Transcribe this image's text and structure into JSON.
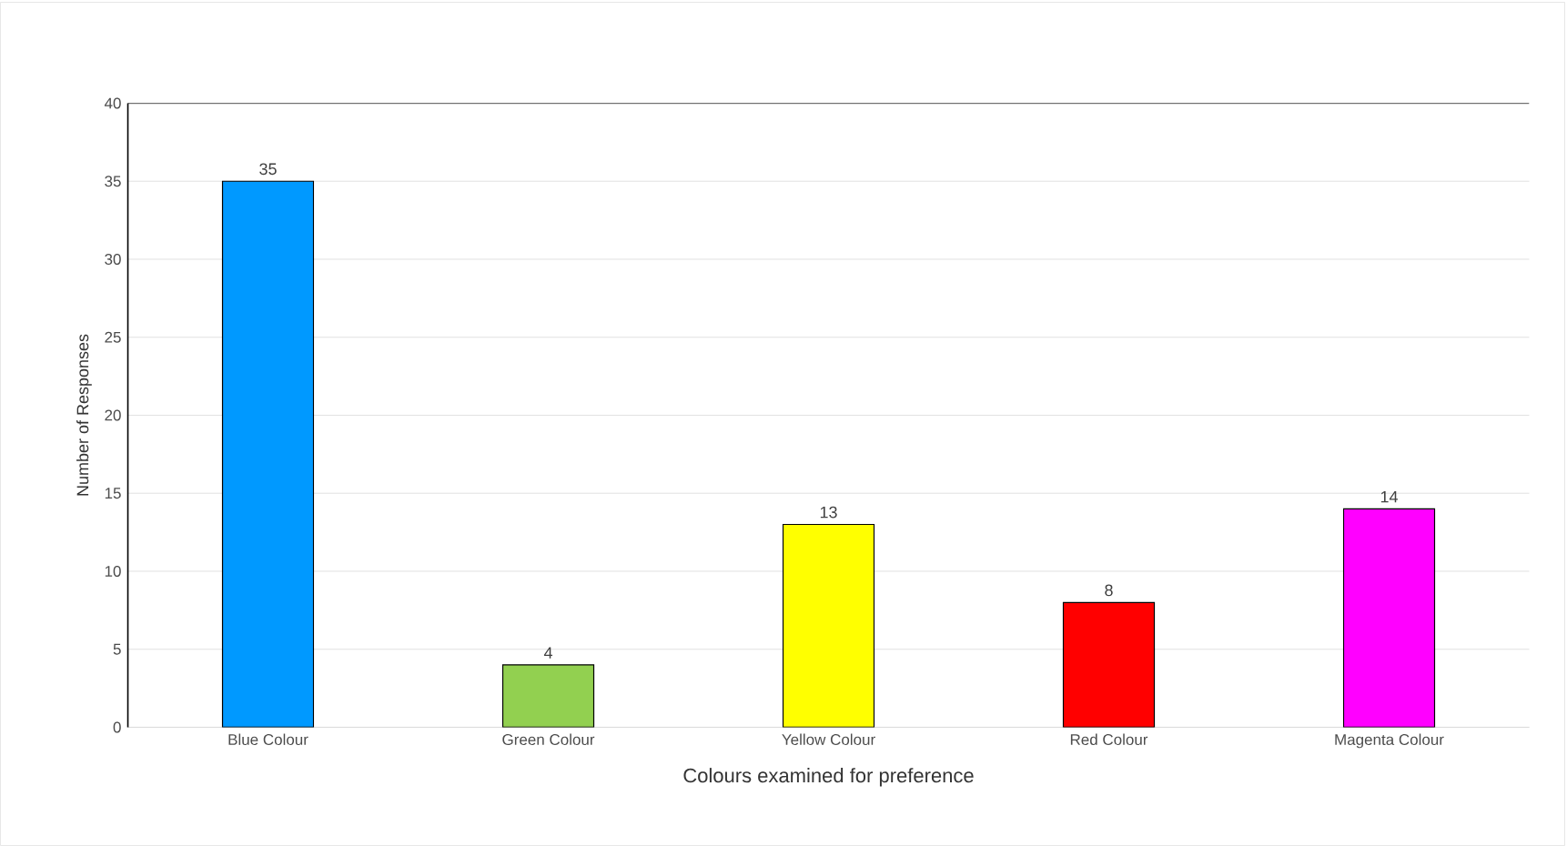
{
  "chart_data": {
    "type": "bar",
    "xlabel": "Colours examined for preference",
    "ylabel": "Number of Responses",
    "categories": [
      "Blue Colour",
      "Green Colour",
      "Yellow Colour",
      "Red Colour",
      "Magenta Colour"
    ],
    "values": [
      35,
      4,
      13,
      8,
      14
    ],
    "colors": [
      "#0099ff",
      "#92d050",
      "#ffff00",
      "#ff0000",
      "#ff00ff"
    ],
    "ylim": [
      0,
      40
    ],
    "yticks": [
      0,
      5,
      10,
      15,
      20,
      25,
      30,
      35,
      40
    ],
    "grid": "y",
    "data_labels": true
  }
}
